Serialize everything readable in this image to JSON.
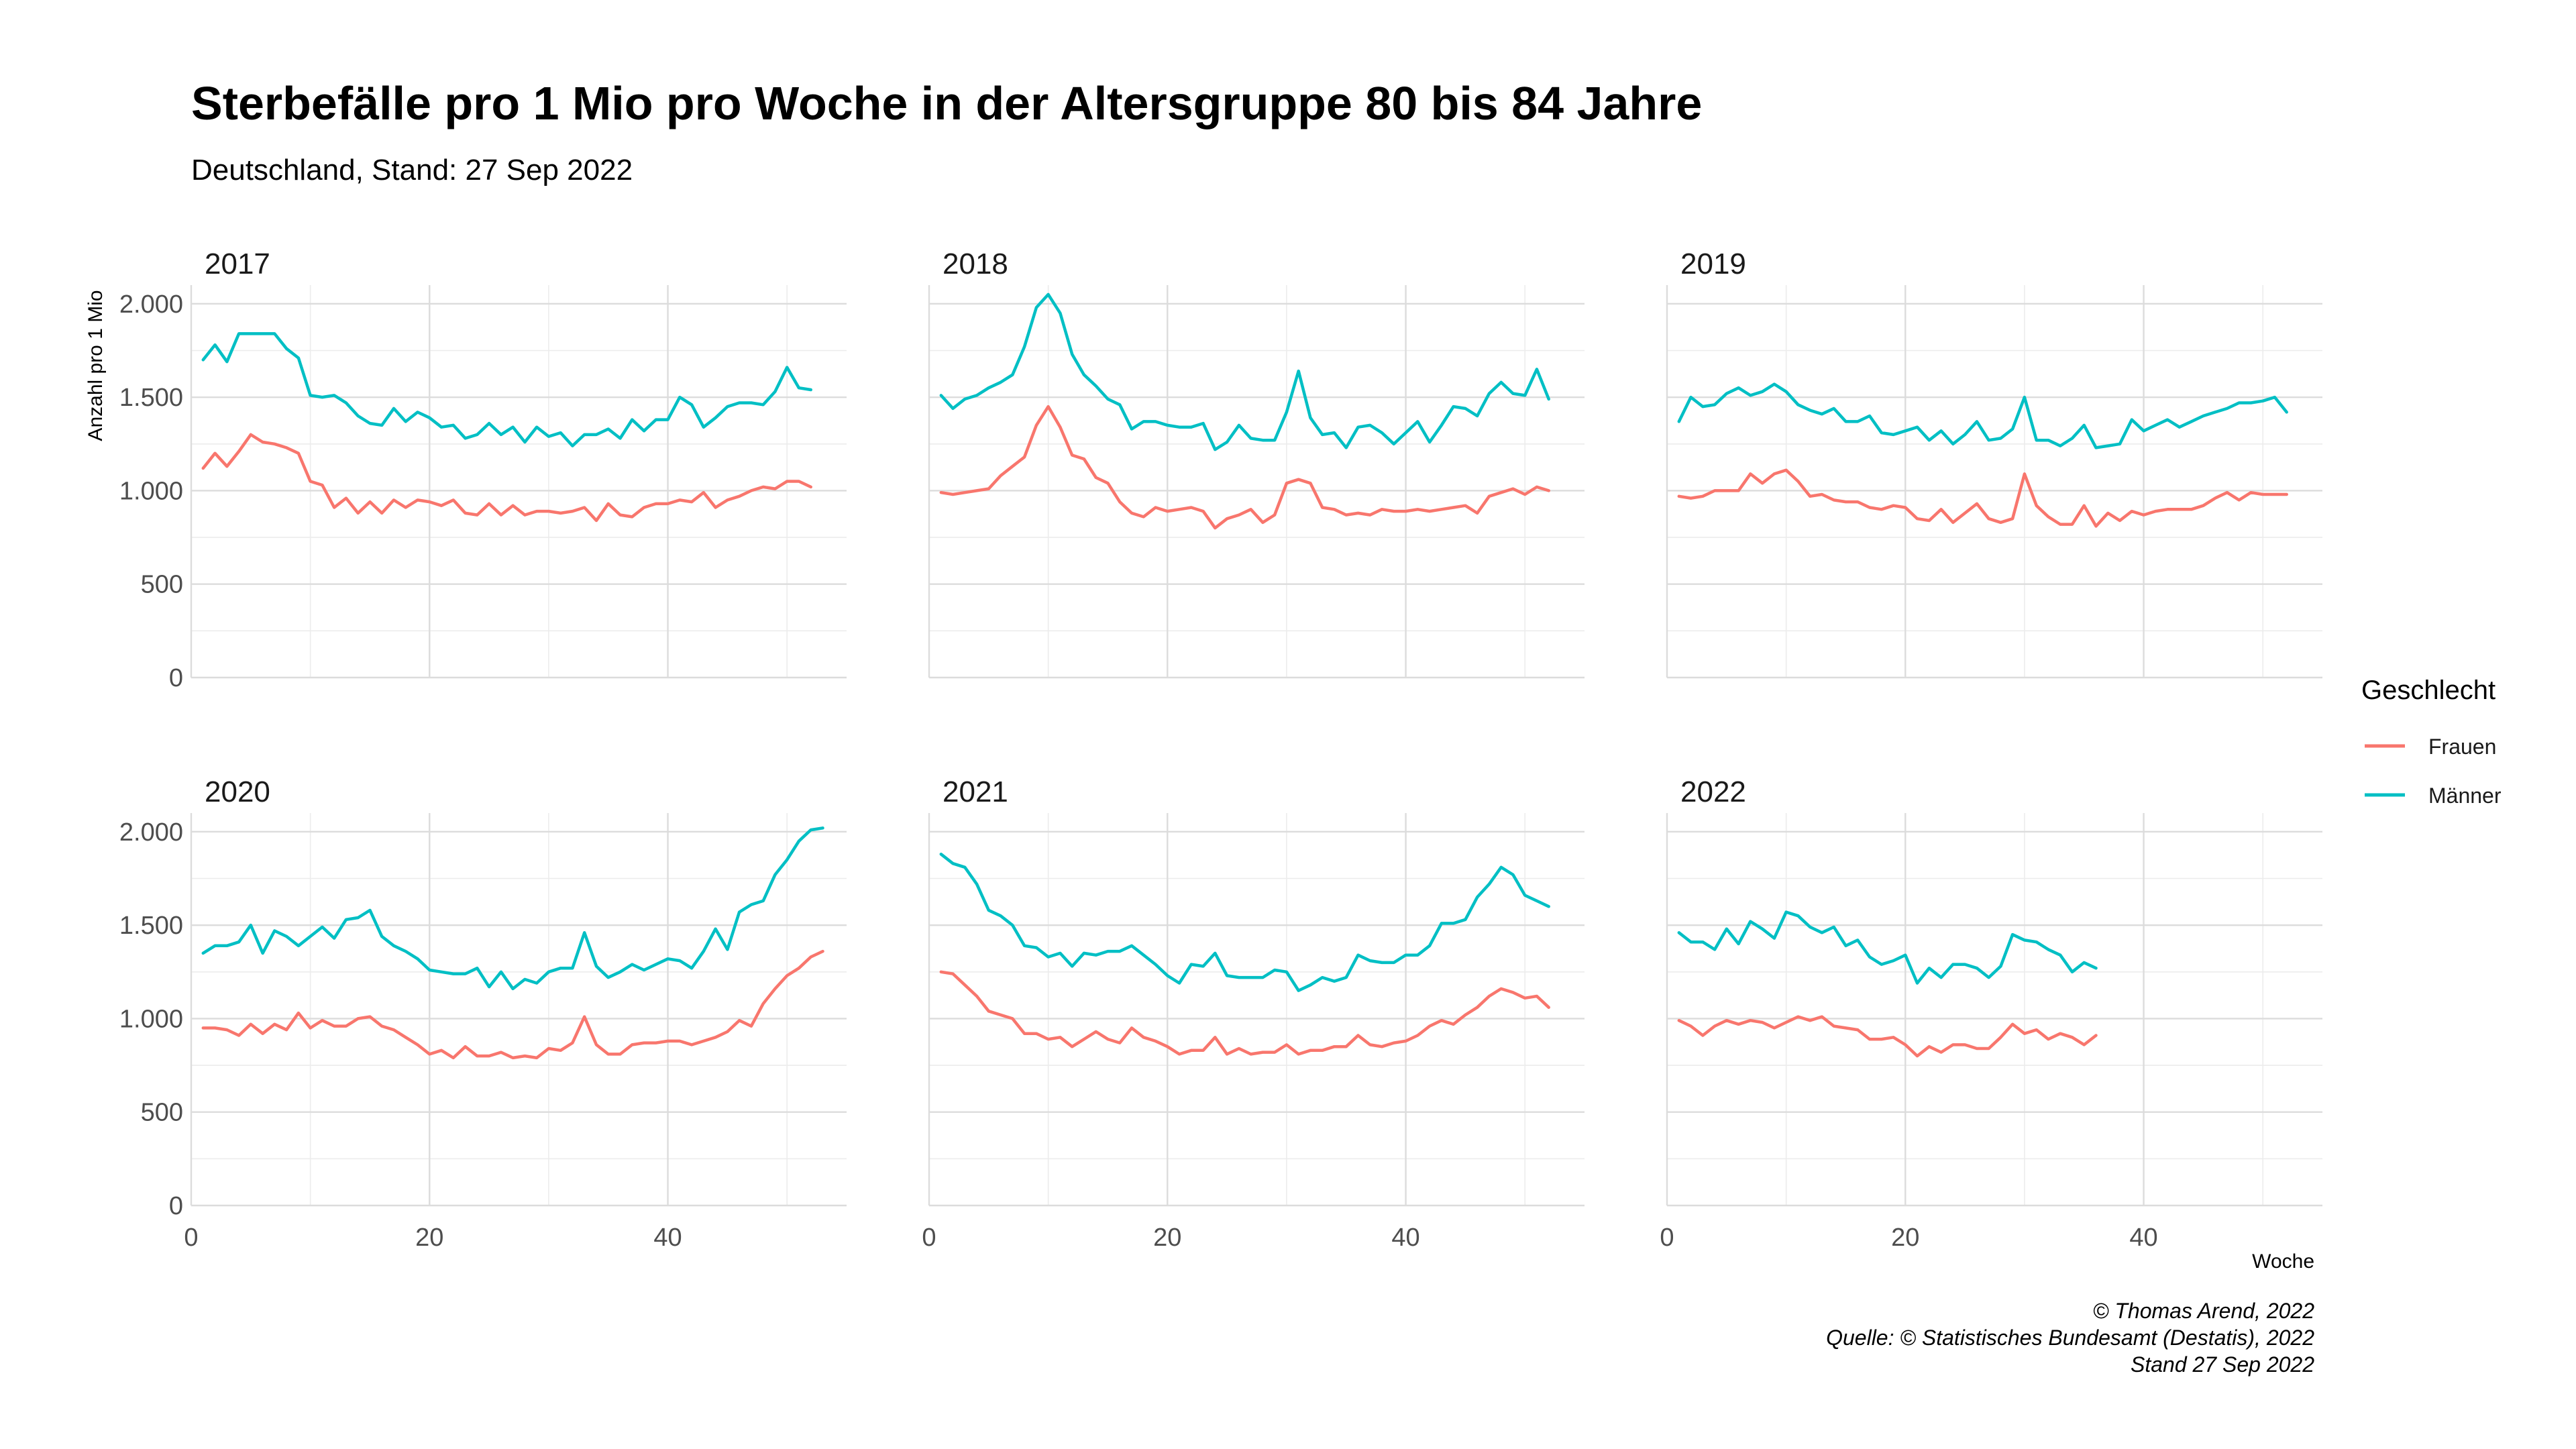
{
  "title": "Sterbefälle pro 1 Mio pro Woche in der Altersgruppe 80 bis 84 Jahre",
  "subtitle": "Deutschland, Stand: 27 Sep 2022",
  "caption": [
    "© Thomas Arend, 2022",
    "Quelle: © Statistisches Bundesamt (Destatis), 2022",
    "Stand 27 Sep 2022"
  ],
  "legend": {
    "title": "Geschlecht",
    "items": [
      {
        "label": "Frauen",
        "color": "#F8766D"
      },
      {
        "label": "Männer",
        "color": "#00BFC4"
      }
    ],
    "position": "right"
  },
  "chart_data": {
    "type": "line",
    "facet": "year",
    "xlabel": "Woche",
    "ylabel": "Anzahl pro 1 Mio",
    "xlim": [
      0,
      55
    ],
    "ylim": [
      0,
      2100
    ],
    "x_ticks": [
      0,
      20,
      40
    ],
    "y_ticks": [
      0,
      500,
      1000,
      1500,
      2000
    ],
    "y_tick_labels": [
      "0",
      "500",
      "1.000",
      "1.500",
      "2.000"
    ],
    "grid": true,
    "panels": [
      {
        "year": "2017",
        "series": [
          {
            "name": "Frauen",
            "values": [
              1120,
              1200,
              1130,
              1210,
              1300,
              1260,
              1250,
              1230,
              1200,
              1050,
              1030,
              910,
              960,
              880,
              940,
              880,
              950,
              910,
              950,
              940,
              920,
              950,
              880,
              870,
              930,
              870,
              920,
              870,
              890,
              890,
              880,
              890,
              910,
              840,
              930,
              870,
              860,
              910,
              930,
              930,
              950,
              940,
              990,
              910,
              950,
              970,
              1000,
              1020,
              1010,
              1050,
              1050,
              1020
            ]
          },
          {
            "name": "Männer",
            "values": [
              1700,
              1780,
              1690,
              1840,
              1840,
              1840,
              1840,
              1760,
              1710,
              1510,
              1500,
              1510,
              1470,
              1400,
              1360,
              1350,
              1440,
              1370,
              1420,
              1390,
              1340,
              1350,
              1280,
              1300,
              1360,
              1300,
              1340,
              1260,
              1340,
              1290,
              1310,
              1240,
              1300,
              1300,
              1330,
              1280,
              1380,
              1320,
              1380,
              1380,
              1500,
              1460,
              1340,
              1390,
              1450,
              1470,
              1470,
              1460,
              1530,
              1660,
              1550,
              1540
            ]
          }
        ]
      },
      {
        "year": "2018",
        "series": [
          {
            "name": "Frauen",
            "values": [
              990,
              980,
              990,
              1000,
              1010,
              1080,
              1130,
              1180,
              1350,
              1450,
              1340,
              1190,
              1170,
              1070,
              1040,
              940,
              880,
              860,
              910,
              890,
              900,
              910,
              890,
              800,
              850,
              870,
              900,
              830,
              870,
              1040,
              1060,
              1040,
              910,
              900,
              870,
              880,
              870,
              900,
              890,
              890,
              900,
              890,
              900,
              910,
              920,
              880,
              970,
              990,
              1010,
              980,
              1020,
              1000
            ]
          },
          {
            "name": "Männer",
            "values": [
              1510,
              1440,
              1490,
              1510,
              1550,
              1580,
              1620,
              1770,
              1980,
              2050,
              1950,
              1730,
              1620,
              1560,
              1490,
              1460,
              1330,
              1370,
              1370,
              1350,
              1340,
              1340,
              1360,
              1220,
              1260,
              1350,
              1280,
              1270,
              1270,
              1420,
              1640,
              1390,
              1300,
              1310,
              1230,
              1340,
              1350,
              1310,
              1250,
              1310,
              1370,
              1260,
              1350,
              1450,
              1440,
              1400,
              1520,
              1580,
              1520,
              1510,
              1650,
              1490
            ]
          }
        ]
      },
      {
        "year": "2019",
        "series": [
          {
            "name": "Frauen",
            "values": [
              970,
              960,
              970,
              1000,
              1000,
              1000,
              1090,
              1040,
              1090,
              1110,
              1050,
              970,
              980,
              950,
              940,
              940,
              910,
              900,
              920,
              910,
              850,
              840,
              900,
              830,
              880,
              930,
              850,
              830,
              850,
              1090,
              920,
              860,
              820,
              820,
              920,
              810,
              880,
              840,
              890,
              870,
              890,
              900,
              900,
              900,
              920,
              960,
              990,
              950,
              990,
              980,
              980,
              980
            ]
          },
          {
            "name": "Männer",
            "values": [
              1370,
              1500,
              1450,
              1460,
              1520,
              1550,
              1510,
              1530,
              1570,
              1530,
              1460,
              1430,
              1410,
              1440,
              1370,
              1370,
              1400,
              1310,
              1300,
              1320,
              1340,
              1270,
              1320,
              1250,
              1300,
              1370,
              1270,
              1280,
              1330,
              1500,
              1270,
              1270,
              1240,
              1280,
              1350,
              1230,
              1240,
              1250,
              1380,
              1320,
              1350,
              1380,
              1340,
              1370,
              1400,
              1420,
              1440,
              1470,
              1470,
              1480,
              1500,
              1420
            ]
          }
        ]
      },
      {
        "year": "2020",
        "series": [
          {
            "name": "Frauen",
            "values": [
              950,
              950,
              940,
              910,
              970,
              920,
              970,
              940,
              1030,
              950,
              990,
              960,
              960,
              1000,
              1010,
              960,
              940,
              900,
              860,
              810,
              830,
              790,
              850,
              800,
              800,
              820,
              790,
              800,
              790,
              840,
              830,
              870,
              1010,
              860,
              810,
              810,
              860,
              870,
              870,
              880,
              880,
              860,
              880,
              900,
              930,
              990,
              960,
              1080,
              1160,
              1230,
              1270,
              1330,
              1360
            ]
          },
          {
            "name": "Männer",
            "values": [
              1350,
              1390,
              1390,
              1410,
              1500,
              1350,
              1470,
              1440,
              1390,
              1440,
              1490,
              1430,
              1530,
              1540,
              1580,
              1440,
              1390,
              1360,
              1320,
              1260,
              1250,
              1240,
              1240,
              1270,
              1170,
              1250,
              1160,
              1210,
              1190,
              1250,
              1270,
              1270,
              1460,
              1280,
              1220,
              1250,
              1290,
              1260,
              1290,
              1320,
              1310,
              1270,
              1360,
              1480,
              1370,
              1570,
              1610,
              1630,
              1770,
              1850,
              1950,
              2010,
              2020
            ]
          }
        ]
      },
      {
        "year": "2021",
        "series": [
          {
            "name": "Frauen",
            "values": [
              1250,
              1240,
              1180,
              1120,
              1040,
              1020,
              1000,
              920,
              920,
              890,
              900,
              850,
              890,
              930,
              890,
              870,
              950,
              900,
              880,
              850,
              810,
              830,
              830,
              900,
              810,
              840,
              810,
              820,
              820,
              860,
              810,
              830,
              830,
              850,
              850,
              910,
              860,
              850,
              870,
              880,
              910,
              960,
              990,
              970,
              1020,
              1060,
              1120,
              1160,
              1140,
              1110,
              1120,
              1060
            ]
          },
          {
            "name": "Männer",
            "values": [
              1880,
              1830,
              1810,
              1720,
              1580,
              1550,
              1500,
              1390,
              1380,
              1330,
              1350,
              1280,
              1350,
              1340,
              1360,
              1360,
              1390,
              1340,
              1290,
              1230,
              1190,
              1290,
              1280,
              1350,
              1230,
              1220,
              1220,
              1220,
              1260,
              1250,
              1150,
              1180,
              1220,
              1200,
              1220,
              1340,
              1310,
              1300,
              1300,
              1340,
              1340,
              1390,
              1510,
              1510,
              1530,
              1650,
              1720,
              1810,
              1770,
              1660,
              1630,
              1600
            ]
          }
        ]
      },
      {
        "year": "2022",
        "series": [
          {
            "name": "Frauen",
            "values": [
              990,
              960,
              910,
              960,
              990,
              970,
              990,
              980,
              950,
              980,
              1010,
              990,
              1010,
              960,
              950,
              940,
              890,
              890,
              900,
              860,
              800,
              850,
              820,
              860,
              860,
              840,
              840,
              900,
              970,
              920,
              940,
              890,
              920,
              900,
              860,
              910
            ]
          },
          {
            "name": "Männer",
            "values": [
              1460,
              1410,
              1410,
              1370,
              1480,
              1400,
              1520,
              1480,
              1430,
              1570,
              1550,
              1490,
              1460,
              1490,
              1390,
              1420,
              1330,
              1290,
              1310,
              1340,
              1190,
              1270,
              1220,
              1290,
              1290,
              1270,
              1220,
              1280,
              1450,
              1420,
              1410,
              1370,
              1340,
              1250,
              1300,
              1270
            ]
          }
        ]
      }
    ]
  }
}
